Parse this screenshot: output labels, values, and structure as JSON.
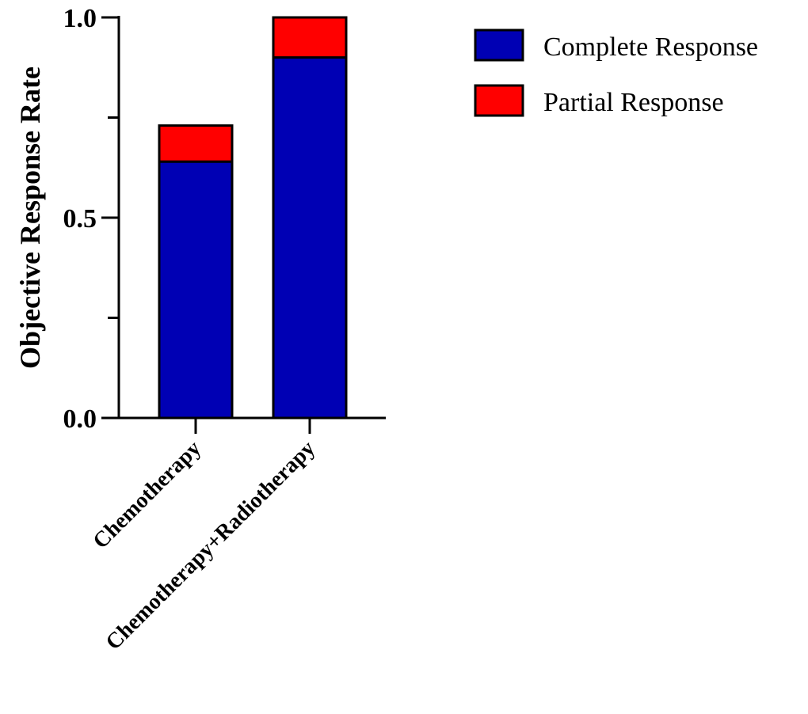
{
  "chart_data": {
    "type": "bar",
    "stacked": true,
    "title": "",
    "xlabel": "",
    "ylabel": "Objective Response Rate",
    "ylim": [
      0,
      1.0
    ],
    "yticks_major": [
      0.0,
      0.5,
      1.0
    ],
    "ytick_labels": [
      "0.0",
      "0.5",
      "1.0"
    ],
    "yticks_minor": [
      0.25,
      0.75
    ],
    "categories": [
      "Chemotherapy",
      "Chemotherapy+Radiotherapy"
    ],
    "series": [
      {
        "name": "Complete Response",
        "color": "#0000b4",
        "values": [
          0.64,
          0.9
        ]
      },
      {
        "name": "Partial Response",
        "color": "#ff0000",
        "values": [
          0.09,
          0.1
        ]
      }
    ],
    "grid": false,
    "legend_position": "top-right"
  }
}
